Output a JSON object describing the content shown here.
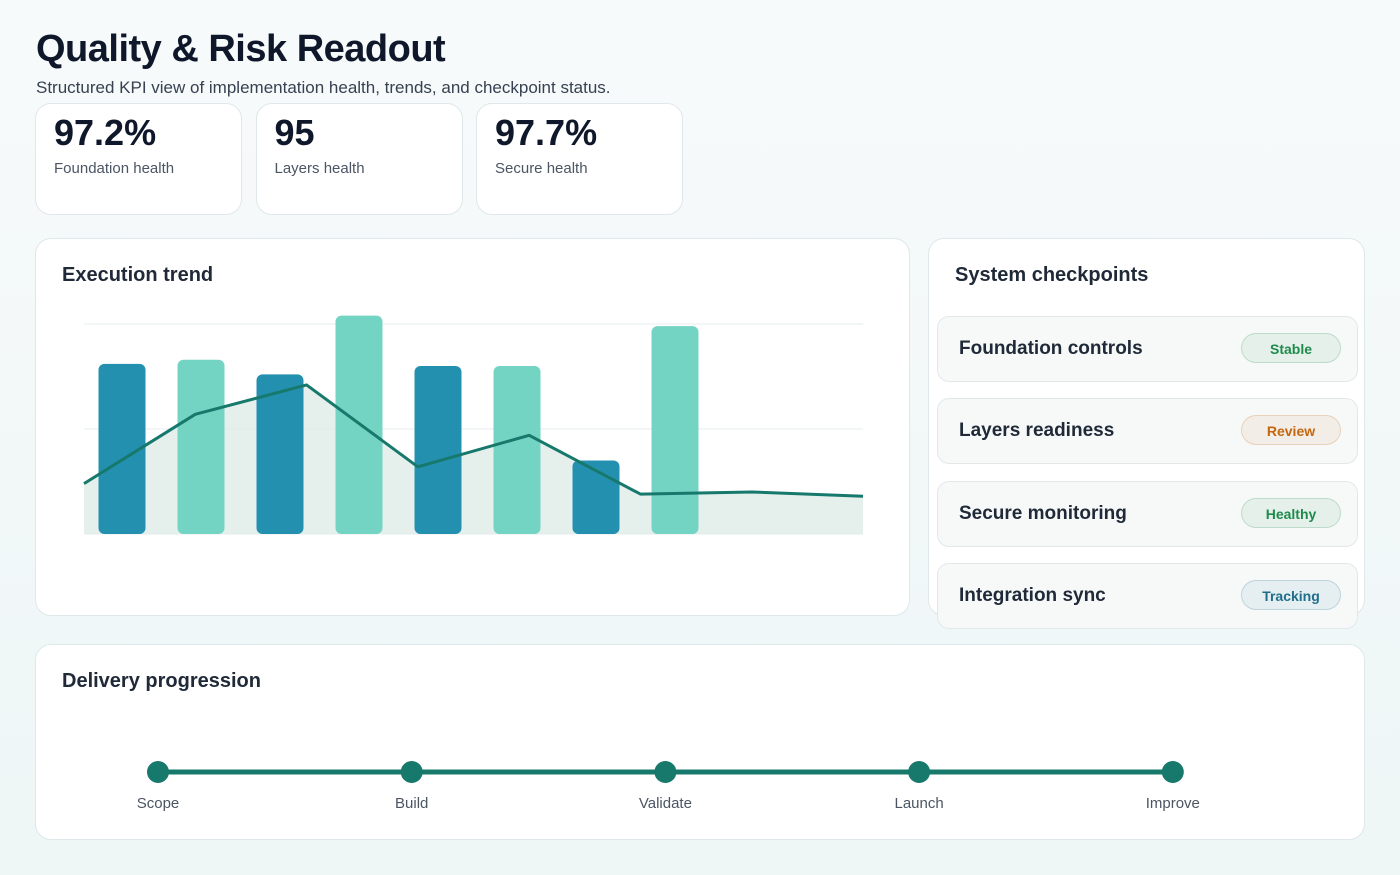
{
  "header": {
    "title": "Quality & Risk Readout",
    "subtitle": "Structured KPI view of implementation health, trends, and checkpoint status."
  },
  "kpis": [
    {
      "value": "97.2%",
      "label": "Foundation health"
    },
    {
      "value": "95",
      "label": "Layers health"
    },
    {
      "value": "97.7%",
      "label": "Secure health"
    }
  ],
  "chart_data": {
    "type": "bar",
    "title": "Execution trend",
    "categories": [
      null,
      null,
      null,
      null,
      null,
      null,
      null,
      null
    ],
    "values": [
      81,
      83,
      76,
      104,
      80,
      80,
      35,
      99
    ],
    "colors": [
      "#2490b0",
      "#74d4c3",
      "#2490b0",
      "#74d4c3",
      "#2490b0",
      "#74d4c3",
      "#2490b0",
      "#74d4c3"
    ],
    "line": {
      "color": "#17786c",
      "values": [
        24,
        57,
        71,
        32,
        47,
        19,
        20,
        18
      ]
    },
    "ylim": [
      0,
      110
    ],
    "yticks": [
      0,
      50,
      100
    ],
    "grid": true
  },
  "checkpoints": {
    "title": "System checkpoints",
    "items": [
      {
        "name": "Foundation controls",
        "status": "Stable",
        "color": "#1f8a4c"
      },
      {
        "name": "Layers readiness",
        "status": "Review",
        "color": "#c4660f"
      },
      {
        "name": "Secure monitoring",
        "status": "Healthy",
        "color": "#1f8a4c"
      },
      {
        "name": "Integration sync",
        "status": "Tracking",
        "color": "#1f6e8a"
      }
    ]
  },
  "progression": {
    "title": "Delivery progression",
    "color": "#17786c",
    "steps": [
      "Scope",
      "Build",
      "Validate",
      "Launch",
      "Improve"
    ]
  }
}
